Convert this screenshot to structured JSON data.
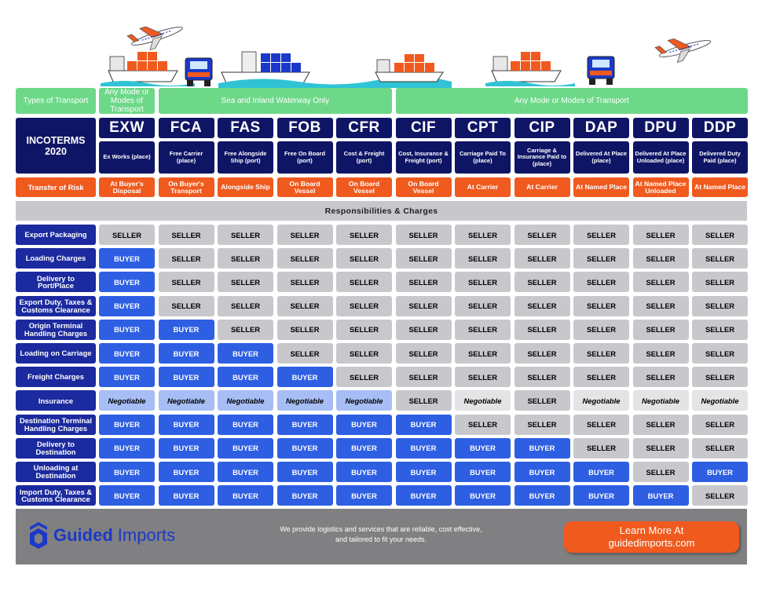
{
  "transport": {
    "label": "Types of Transport",
    "groups": [
      {
        "text": "Any Mode or Modes of Transport",
        "span": 1
      },
      {
        "text": "Sea and Inland Waterway Only",
        "span": 4
      },
      {
        "text": "Any Mode or Modes of Transport",
        "span": 6
      }
    ]
  },
  "incoterms_label": "INCOTERMS 2020",
  "terms": [
    {
      "code": "EXW",
      "desc": "Ex Works (place)",
      "risk": "At Buyer's Disposal"
    },
    {
      "code": "FCA",
      "desc": "Free Carrier (place)",
      "risk": "On Buyer's Transport"
    },
    {
      "code": "FAS",
      "desc": "Free Alongside Ship (port)",
      "risk": "Alongside Ship"
    },
    {
      "code": "FOB",
      "desc": "Free On Board (port)",
      "risk": "On Board Vessel"
    },
    {
      "code": "CFR",
      "desc": "Cost & Freight (port)",
      "risk": "On Board Vessel"
    },
    {
      "code": "CIF",
      "desc": "Cost, Insurance & Freight (port)",
      "risk": "On Board Vessel"
    },
    {
      "code": "CPT",
      "desc": "Carriage Paid To (place)",
      "risk": "At Carrier"
    },
    {
      "code": "CIP",
      "desc": "Carriage & Insurance Paid to (place)",
      "risk": "At Carrier"
    },
    {
      "code": "DAP",
      "desc": "Delivered At Place (place)",
      "risk": "At Named Place"
    },
    {
      "code": "DPU",
      "desc": "Delivered At Place Unloaded (place)",
      "risk": "At Named Place Unloaded"
    },
    {
      "code": "DDP",
      "desc": "Delivered Duty Paid (place)",
      "risk": "At Named Place"
    }
  ],
  "risk_label": "Transfer of Risk",
  "responsibilities_label": "Responsibilities & Charges",
  "rows": [
    {
      "label": "Export Packaging",
      "values": [
        "SELLER",
        "SELLER",
        "SELLER",
        "SELLER",
        "SELLER",
        "SELLER",
        "SELLER",
        "SELLER",
        "SELLER",
        "SELLER",
        "SELLER"
      ]
    },
    {
      "label": "Loading Charges",
      "values": [
        "BUYER",
        "SELLER",
        "SELLER",
        "SELLER",
        "SELLER",
        "SELLER",
        "SELLER",
        "SELLER",
        "SELLER",
        "SELLER",
        "SELLER"
      ]
    },
    {
      "label": "Delivery to Port/Place",
      "values": [
        "BUYER",
        "SELLER",
        "SELLER",
        "SELLER",
        "SELLER",
        "SELLER",
        "SELLER",
        "SELLER",
        "SELLER",
        "SELLER",
        "SELLER"
      ]
    },
    {
      "label": "Export Duty, Taxes & Customs Clearance",
      "values": [
        "BUYER",
        "SELLER",
        "SELLER",
        "SELLER",
        "SELLER",
        "SELLER",
        "SELLER",
        "SELLER",
        "SELLER",
        "SELLER",
        "SELLER"
      ]
    },
    {
      "label": "Origin Terminal Handling Charges",
      "values": [
        "BUYER",
        "BUYER",
        "SELLER",
        "SELLER",
        "SELLER",
        "SELLER",
        "SELLER",
        "SELLER",
        "SELLER",
        "SELLER",
        "SELLER"
      ]
    },
    {
      "label": "Loading on Carriage",
      "values": [
        "BUYER",
        "BUYER",
        "BUYER",
        "SELLER",
        "SELLER",
        "SELLER",
        "SELLER",
        "SELLER",
        "SELLER",
        "SELLER",
        "SELLER"
      ]
    },
    {
      "label": "Freight Charges",
      "values": [
        "BUYER",
        "BUYER",
        "BUYER",
        "BUYER",
        "SELLER",
        "SELLER",
        "SELLER",
        "SELLER",
        "SELLER",
        "SELLER",
        "SELLER"
      ]
    },
    {
      "label": "Insurance",
      "values": [
        "Negotiable",
        "Negotiable",
        "Negotiable",
        "Negotiable",
        "Negotiable",
        "SELLER",
        "Negotiable",
        "SELLER",
        "Negotiable",
        "Negotiable",
        "Negotiable"
      ]
    },
    {
      "label": "Destination Terminal Handling Charges",
      "values": [
        "BUYER",
        "BUYER",
        "BUYER",
        "BUYER",
        "BUYER",
        "BUYER",
        "SELLER",
        "SELLER",
        "SELLER",
        "SELLER",
        "SELLER"
      ]
    },
    {
      "label": "Delivery to Destination",
      "values": [
        "BUYER",
        "BUYER",
        "BUYER",
        "BUYER",
        "BUYER",
        "BUYER",
        "BUYER",
        "BUYER",
        "SELLER",
        "SELLER",
        "SELLER"
      ]
    },
    {
      "label": "Unloading at Destination",
      "values": [
        "BUYER",
        "BUYER",
        "BUYER",
        "BUYER",
        "BUYER",
        "BUYER",
        "BUYER",
        "BUYER",
        "BUYER",
        "SELLER",
        "BUYER"
      ]
    },
    {
      "label": "Import Duty, Taxes & Customs Clearance",
      "values": [
        "BUYER",
        "BUYER",
        "BUYER",
        "BUYER",
        "BUYER",
        "BUYER",
        "BUYER",
        "BUYER",
        "BUYER",
        "BUYER",
        "SELLER"
      ]
    }
  ],
  "footer": {
    "brand_bold": "Guided",
    "brand_light": "Imports",
    "tagline_line1": "We provide logistics and services that are reliable, cost effective,",
    "tagline_line2": "and tailored to fit your needs.",
    "cta_line1": "Learn More At",
    "cta_line2": "guidedimports.com"
  },
  "colors": {
    "navy": "#0f1565",
    "label_blue": "#1b2a9e",
    "buyer": "#2e5fe3",
    "seller": "#c8c8cc",
    "green": "#6ed889",
    "orange": "#f05a1e"
  }
}
